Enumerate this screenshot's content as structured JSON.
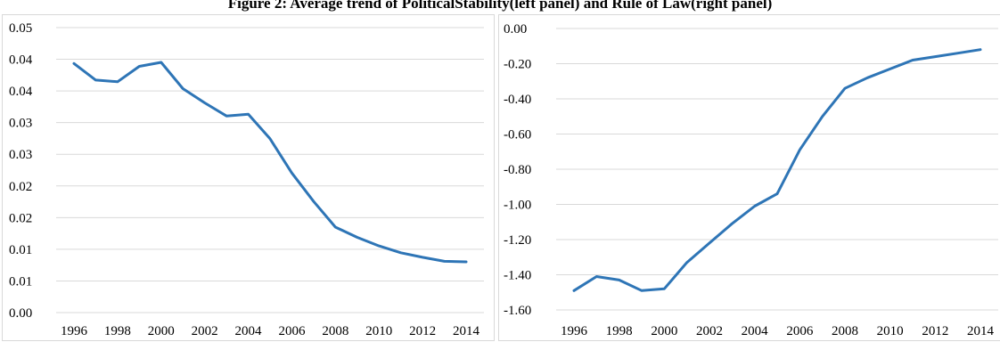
{
  "figure_title": "Figure 2: Average trend of PoliticalStability(left panel) and Rule of Law(right panel)",
  "chart_data": [
    {
      "type": "line",
      "panel": "left",
      "title": "",
      "xlabel": "",
      "ylabel": "",
      "grid": true,
      "ylim": [
        0.0,
        0.05
      ],
      "ytick_labels": [
        "0.00",
        "0.01",
        "0.01",
        "0.02",
        "0.02",
        "0.03",
        "0.03",
        "0.04",
        "0.04",
        "0.05"
      ],
      "x_tick_labels": [
        "1996",
        "1998",
        "2000",
        "2002",
        "2004",
        "2006",
        "2008",
        "2010",
        "2012",
        "2014"
      ],
      "x": [
        1996,
        1997,
        1998,
        1999,
        2000,
        2001,
        2002,
        2003,
        2004,
        2005,
        2006,
        2007,
        2008,
        2009,
        2010,
        2011,
        2012,
        2013,
        2014
      ],
      "series": [
        {
          "color": "#2e75b6",
          "values": [
            0.0437,
            0.0408,
            0.0405,
            0.0432,
            0.0439,
            0.0393,
            0.0368,
            0.0345,
            0.0348,
            0.0305,
            0.0245,
            0.0195,
            0.015,
            0.0132,
            0.0117,
            0.0105,
            0.0097,
            0.009,
            0.0089
          ]
        }
      ]
    },
    {
      "type": "line",
      "panel": "right",
      "title": "",
      "xlabel": "",
      "ylabel": "",
      "grid": true,
      "ylim": [
        -1.6,
        0.0
      ],
      "ytick_labels": [
        "-1.60",
        "-1.40",
        "-1.20",
        "-1.00",
        "-0.80",
        "-0.60",
        "-0.40",
        "-0.20",
        "0.00"
      ],
      "x_tick_labels": [
        "1996",
        "1998",
        "2000",
        "2002",
        "2004",
        "2006",
        "2008",
        "2010",
        "2012",
        "2014"
      ],
      "x": [
        1996,
        1997,
        1998,
        1999,
        2000,
        2001,
        2002,
        2003,
        2004,
        2005,
        2006,
        2007,
        2008,
        2009,
        2010,
        2011,
        2012,
        2013,
        2014
      ],
      "series": [
        {
          "color": "#2e75b6",
          "values": [
            -1.49,
            -1.41,
            -1.43,
            -1.49,
            -1.48,
            -1.33,
            -1.22,
            -1.11,
            -1.01,
            -0.94,
            -0.69,
            -0.5,
            -0.34,
            -0.28,
            -0.23,
            -0.18,
            -0.16,
            -0.14,
            -0.12
          ]
        }
      ]
    }
  ]
}
